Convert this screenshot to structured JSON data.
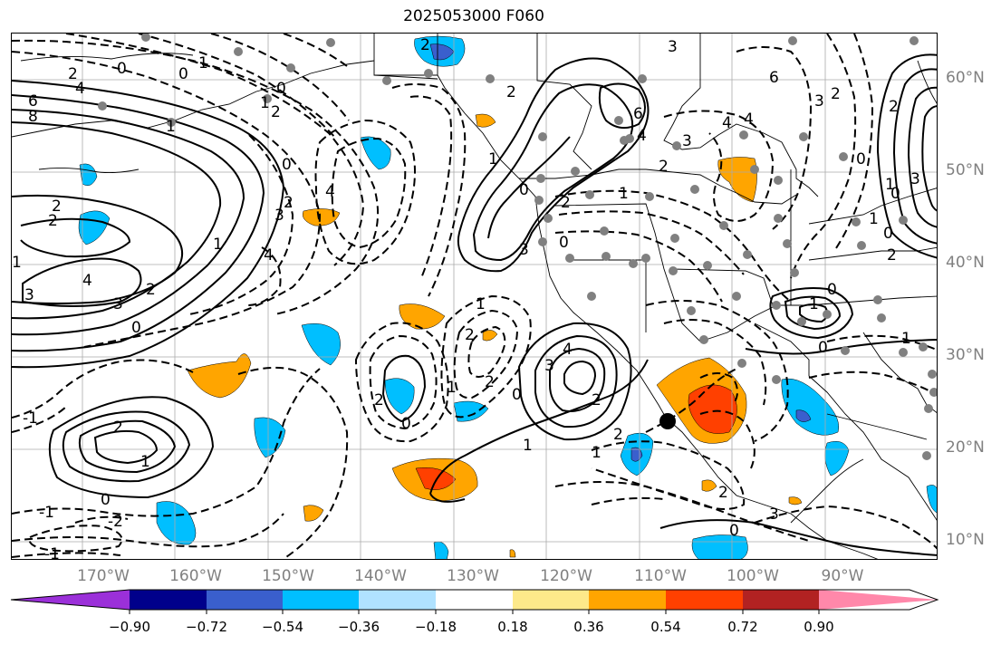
{
  "title": "2025053000 F060",
  "latitude_labels": [
    "60°N",
    "50°N",
    "40°N",
    "30°N",
    "20°N",
    "10°N"
  ],
  "longitude_labels": [
    "170°W",
    "160°W",
    "150°W",
    "140°W",
    "130°W",
    "120°W",
    "110°W",
    "100°W",
    "90°W"
  ],
  "colorbar": {
    "tick_labels": [
      "−0.90",
      "−0.72",
      "−0.54",
      "−0.36",
      "−0.18",
      "0.18",
      "0.36",
      "0.54",
      "0.72",
      "0.90"
    ],
    "colors": [
      "#9b30d9",
      "#00008b",
      "#3a5fcd",
      "#00bfff",
      "#b0e2ff",
      "#ffffff",
      "#fde98a",
      "#ffa500",
      "#ff4000",
      "#b22222",
      "#ff88aa"
    ]
  },
  "contour_labels": [
    "0",
    "2",
    "4",
    "6",
    "8",
    "2",
    "2",
    "1",
    "3",
    "4",
    "3",
    "0",
    "2",
    "1",
    "0",
    "1",
    "0",
    "2",
    "1",
    "2",
    "1",
    "0",
    "4",
    "3",
    "4",
    "2",
    "2",
    "1",
    "0",
    "3",
    "2",
    "0",
    "2",
    "1",
    "0",
    "3",
    "4",
    "2",
    "2",
    "1",
    "1",
    "0",
    "2",
    "3",
    "6",
    "4",
    "4",
    "3",
    "2",
    "1",
    "6",
    "0",
    "4",
    "3",
    "2",
    "1",
    "0",
    "0",
    "1",
    "2",
    "3",
    "2",
    "1",
    "0",
    "1",
    "0",
    "0",
    "2",
    "3",
    "1",
    "2",
    "-1",
    "-2",
    "-1",
    "-1",
    "2",
    "1",
    "0"
  ],
  "features": {
    "stations": "grey-dots",
    "marker": "black-dot"
  }
}
